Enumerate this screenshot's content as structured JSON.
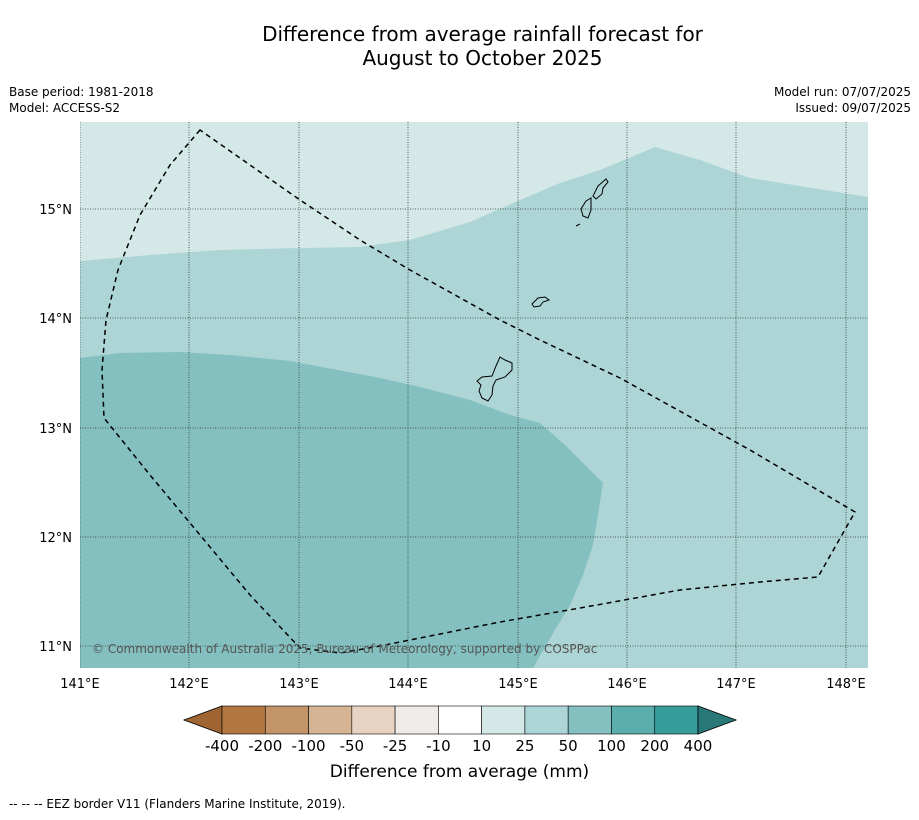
{
  "title_line1": "Difference from average rainfall forecast for",
  "title_line2": "August to October 2025",
  "meta_left": {
    "base_period": "Base period: 1981-2018",
    "model": "Model: ACCESS-S2"
  },
  "meta_right": {
    "model_run": "Model run: 07/07/2025",
    "issued": "Issued: 09/07/2025"
  },
  "map": {
    "lat_labels": [
      "15°N",
      "14°N",
      "13°N",
      "12°N",
      "11°N"
    ],
    "lon_labels": [
      "141°E",
      "142°E",
      "143°E",
      "144°E",
      "145°E",
      "146°E",
      "147°E",
      "148°E"
    ],
    "copyright": "© Commonwealth of Australia 2025, Bureau of Meteorology, supported by COSPPac",
    "fill_colors": {
      "band_10_25": "#d5e8e8",
      "band_25_50": "#add5d5",
      "band_50_100": "#84c0c0"
    }
  },
  "colorbar": {
    "tick_labels": [
      "-400",
      "-200",
      "-100",
      "-50",
      "-25",
      "-10",
      "10",
      "25",
      "50",
      "100",
      "200",
      "400"
    ],
    "colors": [
      "#9e6532",
      "#b07840",
      "#c39468",
      "#d4b494",
      "#e8d3c2",
      "#efebe8",
      "#ffffff",
      "#d5e8e8",
      "#add5d5",
      "#84c0c0",
      "#5aaeae",
      "#359b9b",
      "#2a7979"
    ],
    "label": "Difference from average (mm)"
  },
  "footer": "--  --  -- EEZ border V11 (Flanders Marine Institute, 2019)."
}
